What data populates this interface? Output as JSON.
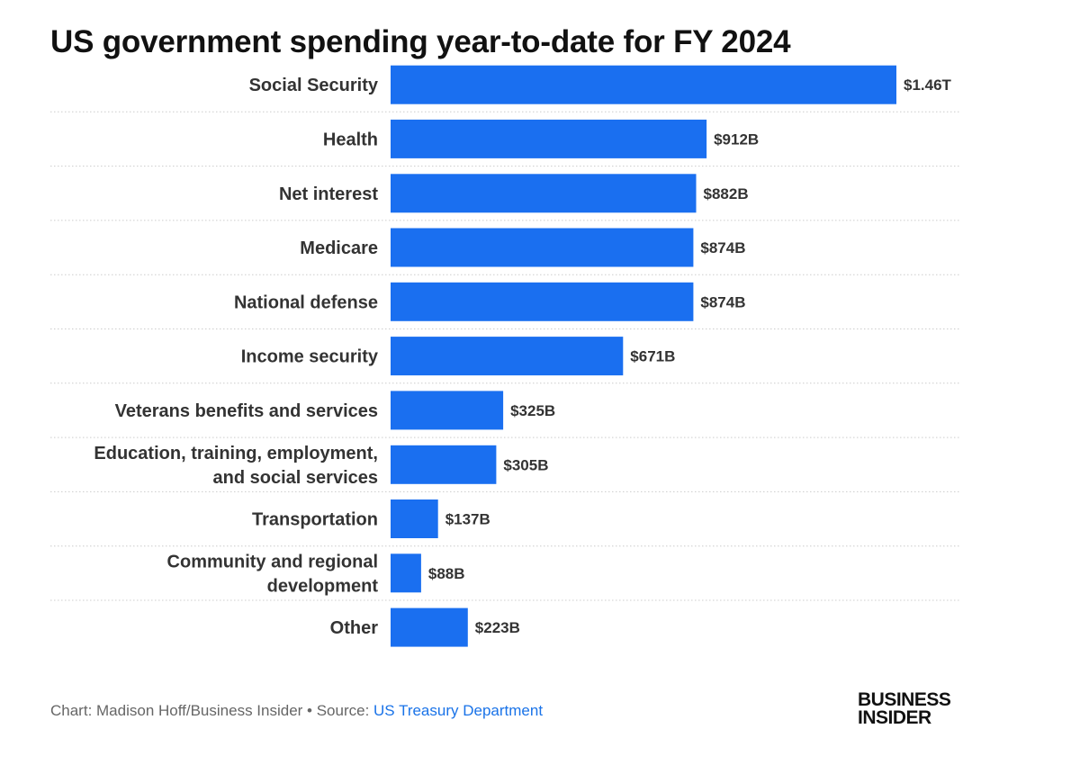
{
  "title": "US government spending year-to-date for FY 2024",
  "footer": {
    "credit": "Chart: Madison Hoff/Business Insider • Source: ",
    "source_link": "US Treasury Department"
  },
  "logo": [
    "BUSINESS",
    "INSIDER"
  ],
  "colors": {
    "bar": "#1a6ff0",
    "grid": "#cccccc",
    "text": "#333333",
    "link": "#1a73e8"
  },
  "chart_data": {
    "type": "bar",
    "orientation": "horizontal",
    "title": "US government spending year-to-date for FY 2024",
    "categories": [
      [
        "Social Security"
      ],
      [
        "Health"
      ],
      [
        "Net interest"
      ],
      [
        "Medicare"
      ],
      [
        "National defense"
      ],
      [
        "Income security"
      ],
      [
        "Veterans benefits and services"
      ],
      [
        "Education, training, employment,",
        "and social services"
      ],
      [
        "Transportation"
      ],
      [
        "Community and regional",
        "development"
      ],
      [
        "Other"
      ]
    ],
    "values": [
      1460,
      912,
      882,
      874,
      874,
      671,
      325,
      305,
      137,
      88,
      223
    ],
    "value_unit": "billions USD",
    "data_labels": [
      "$1.46T",
      "$912B",
      "$882B",
      "$874B",
      "$874B",
      "$671B",
      "$325B",
      "$305B",
      "$137B",
      "$88B",
      "$223B"
    ],
    "grid": "dotted row separators",
    "legend": "none"
  }
}
